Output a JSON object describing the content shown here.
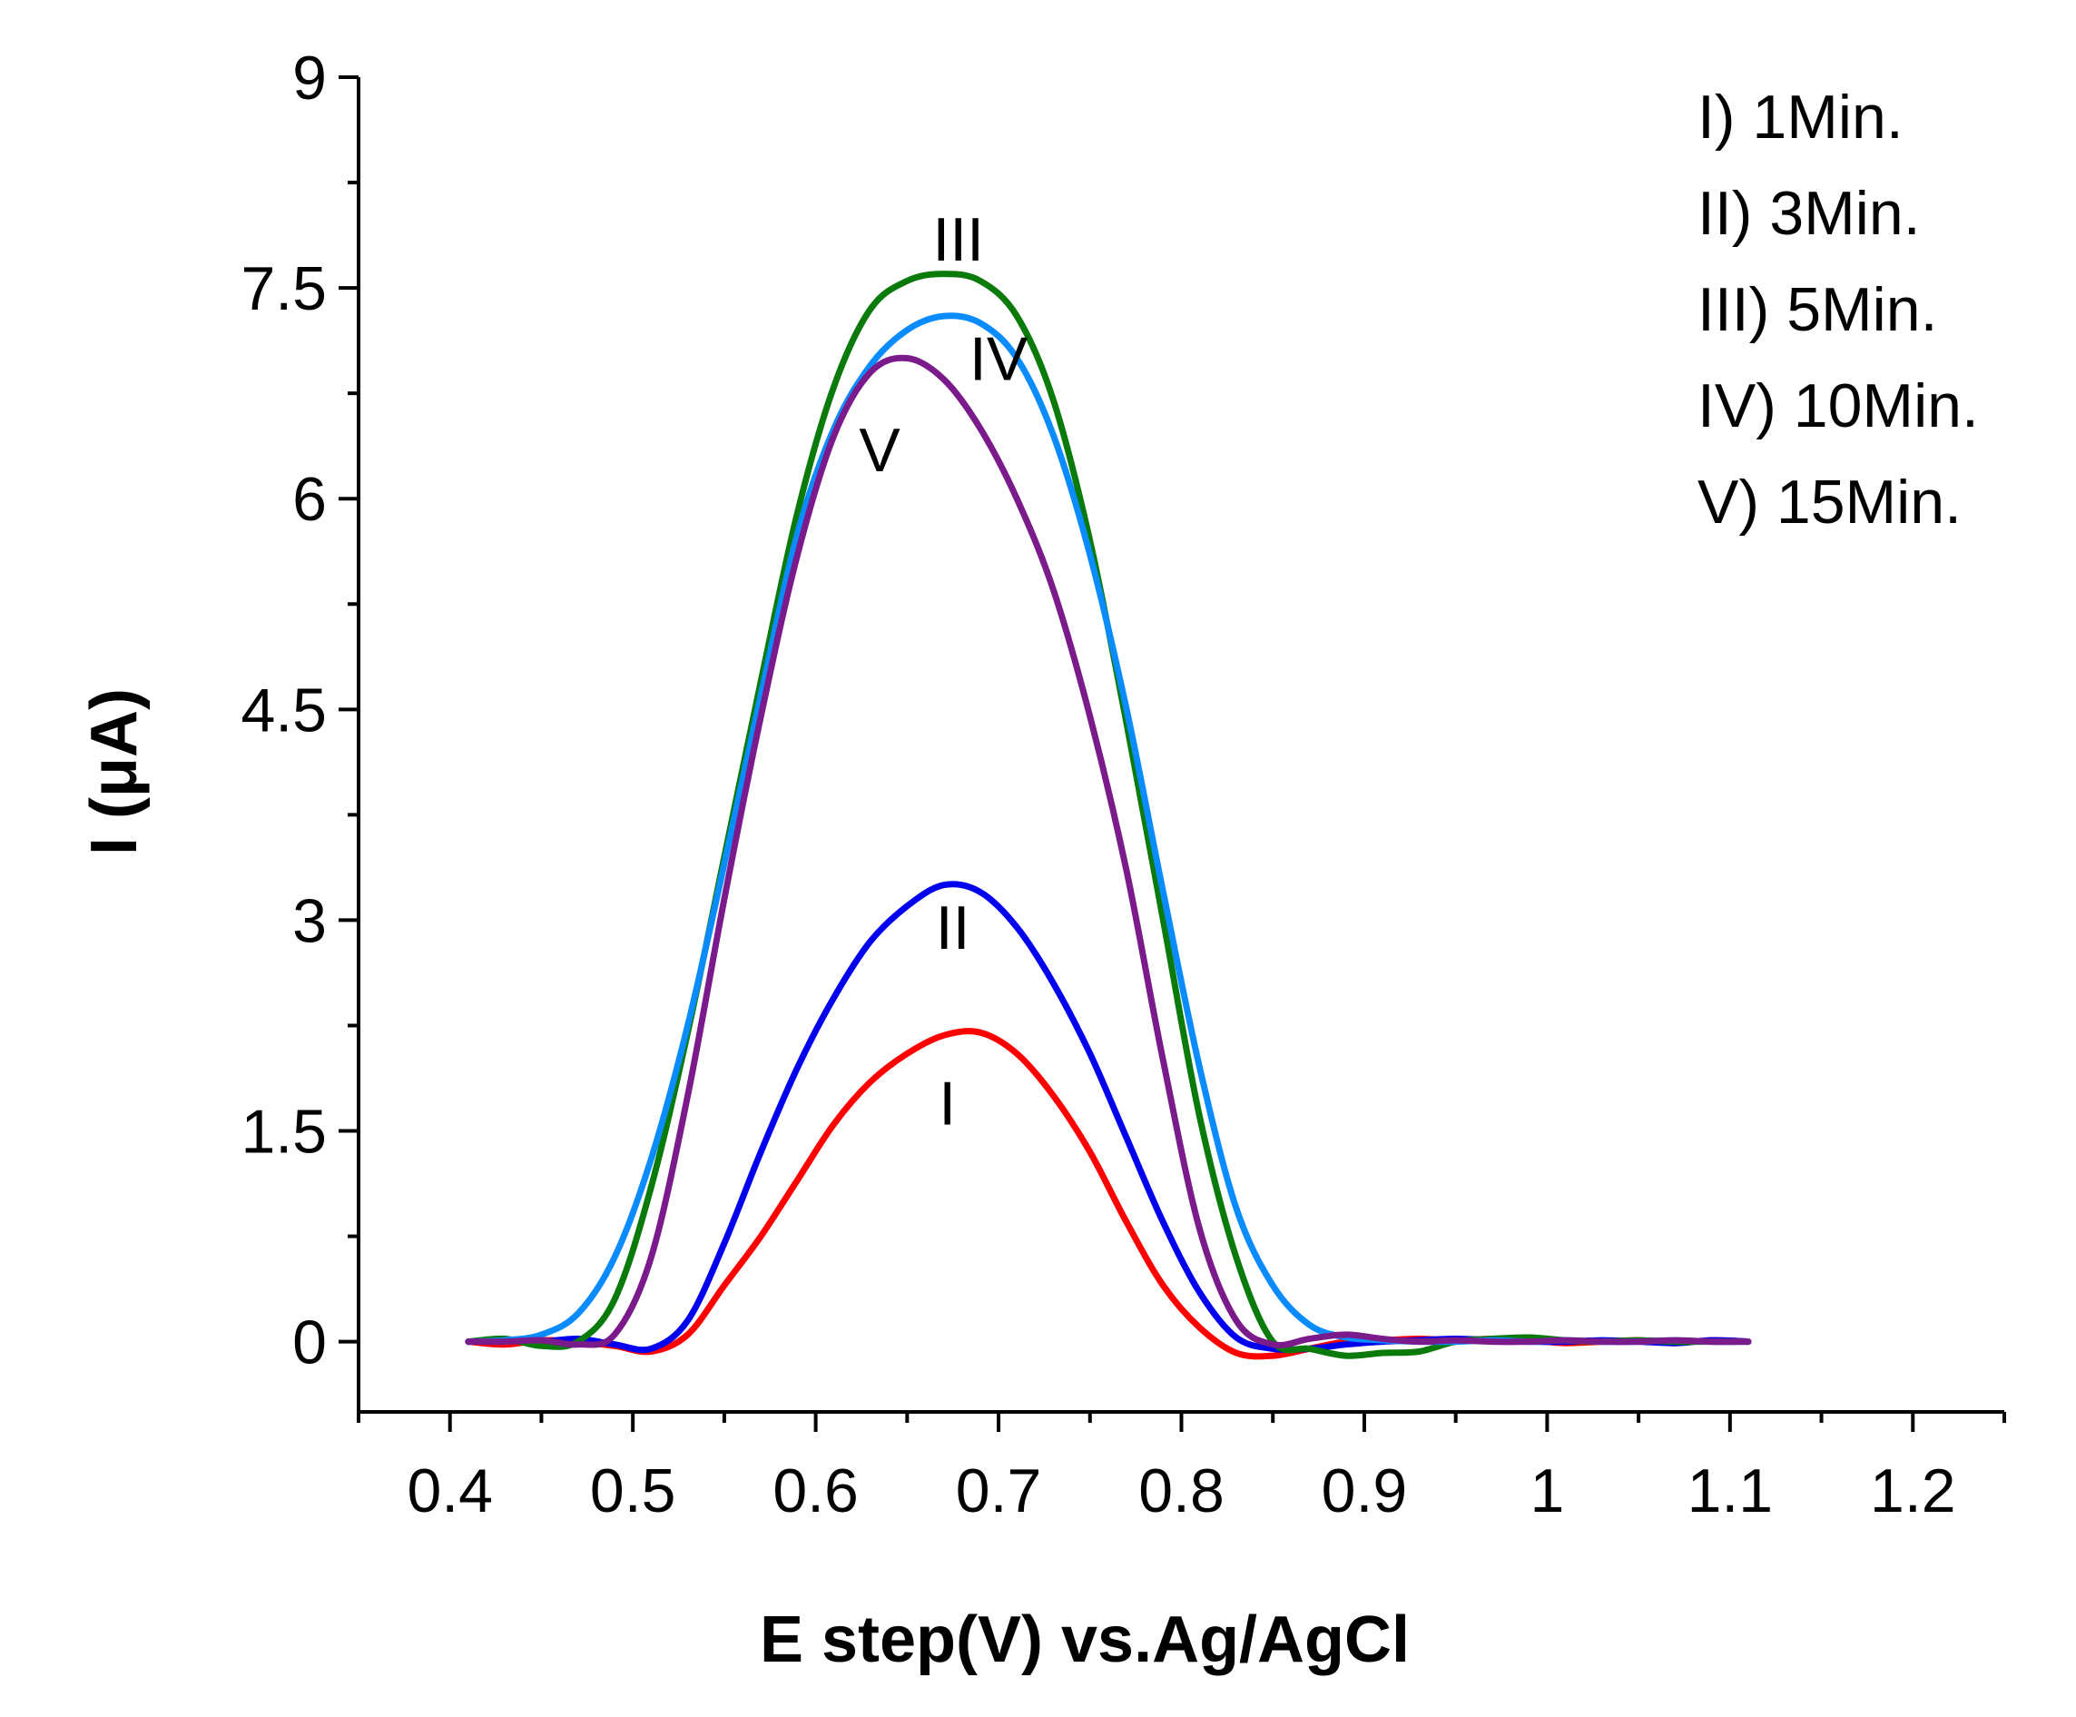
{
  "chart_data": {
    "type": "line",
    "title": "",
    "xlabel": "E step(V) vs.Ag/AgCl",
    "ylabel": "I (μA)",
    "xlim": [
      0.35,
      1.25
    ],
    "ylim": [
      -0.5,
      9
    ],
    "x_ticks": [
      0.4,
      0.5,
      0.6,
      0.7,
      0.8,
      0.9,
      1,
      1.1,
      1.2
    ],
    "x_tick_labels": [
      "0.4",
      "0.5",
      "0.6",
      "0.7",
      "0.8",
      "0.9",
      "1",
      "1.1",
      "1.2"
    ],
    "y_ticks": [
      0,
      1.5,
      3,
      4.5,
      6,
      7.5,
      9
    ],
    "y_tick_labels": [
      "0",
      "1.5",
      "3",
      "4.5",
      "6",
      "7.5",
      "9"
    ],
    "legend": [
      "I) 1Min.",
      "II) 3Min.",
      "III) 5Min.",
      "IV) 10Min.",
      "V) 15Min."
    ],
    "series": [
      {
        "name": "I",
        "label": "I",
        "color": "#ff0000",
        "label_pos": [
          0.672,
          1.7
        ],
        "x": [
          0.41,
          0.43,
          0.45,
          0.47,
          0.49,
          0.51,
          0.53,
          0.55,
          0.57,
          0.59,
          0.61,
          0.63,
          0.65,
          0.67,
          0.69,
          0.71,
          0.73,
          0.75,
          0.77,
          0.79,
          0.81,
          0.83,
          0.85,
          0.87,
          0.89,
          0.91,
          0.93,
          0.95,
          0.97,
          0.99,
          1.01,
          1.03,
          1.05,
          1.07,
          1.09,
          1.11
        ],
        "y": [
          0.0,
          -0.02,
          0.01,
          0.0,
          -0.03,
          -0.07,
          0.05,
          0.4,
          0.75,
          1.15,
          1.55,
          1.85,
          2.05,
          2.18,
          2.2,
          2.05,
          1.75,
          1.35,
          0.85,
          0.4,
          0.1,
          -0.08,
          -0.1,
          -0.05,
          0.0,
          0.01,
          0.02,
          0.01,
          0.02,
          0.01,
          -0.01,
          0.0,
          0.01,
          -0.01,
          0.01,
          0.0
        ]
      },
      {
        "name": "II",
        "label": "II",
        "color": "#0000ee",
        "label_pos": [
          0.675,
          2.95
        ],
        "x": [
          0.41,
          0.43,
          0.45,
          0.47,
          0.49,
          0.51,
          0.53,
          0.55,
          0.57,
          0.59,
          0.61,
          0.63,
          0.65,
          0.67,
          0.69,
          0.71,
          0.73,
          0.75,
          0.77,
          0.79,
          0.81,
          0.83,
          0.85,
          0.87,
          0.89,
          0.91,
          0.93,
          0.95,
          0.97,
          0.99,
          1.01,
          1.03,
          1.05,
          1.07,
          1.09,
          1.11
        ],
        "y": [
          0.0,
          0.01,
          0.0,
          0.02,
          -0.02,
          -0.05,
          0.15,
          0.7,
          1.35,
          1.95,
          2.45,
          2.85,
          3.1,
          3.25,
          3.2,
          2.95,
          2.55,
          2.05,
          1.45,
          0.85,
          0.35,
          0.03,
          -0.05,
          -0.05,
          -0.02,
          0.0,
          0.01,
          0.02,
          0.01,
          0.0,
          0.0,
          0.01,
          0.0,
          -0.01,
          0.01,
          0.0
        ]
      },
      {
        "name": "III",
        "label": "III",
        "color": "#0a7a0a",
        "label_pos": [
          0.678,
          7.85
        ],
        "x": [
          0.41,
          0.43,
          0.45,
          0.47,
          0.49,
          0.51,
          0.53,
          0.55,
          0.57,
          0.59,
          0.61,
          0.63,
          0.65,
          0.67,
          0.69,
          0.71,
          0.73,
          0.75,
          0.77,
          0.79,
          0.81,
          0.83,
          0.85,
          0.87,
          0.89,
          0.91,
          0.93,
          0.95,
          0.97,
          0.99,
          1.01,
          1.03,
          1.05,
          1.07,
          1.09,
          1.11
        ],
        "y": [
          0.0,
          0.02,
          -0.03,
          0.0,
          0.3,
          1.1,
          2.2,
          3.45,
          4.7,
          5.9,
          6.8,
          7.35,
          7.55,
          7.6,
          7.55,
          7.3,
          6.7,
          5.7,
          4.4,
          3.0,
          1.6,
          0.6,
          0.0,
          -0.05,
          -0.1,
          -0.08,
          -0.07,
          0.0,
          0.02,
          0.03,
          0.01,
          0.0,
          0.01,
          0.0,
          0.0,
          0.0
        ]
      },
      {
        "name": "IV",
        "label": "IV",
        "color": "#0a8cff",
        "label_pos": [
          0.7,
          7.0
        ],
        "x": [
          0.41,
          0.43,
          0.45,
          0.47,
          0.49,
          0.51,
          0.53,
          0.55,
          0.57,
          0.59,
          0.61,
          0.63,
          0.65,
          0.67,
          0.69,
          0.71,
          0.73,
          0.75,
          0.77,
          0.79,
          0.81,
          0.83,
          0.85,
          0.87,
          0.89,
          0.91,
          0.93,
          0.95,
          0.97,
          0.99,
          1.01,
          1.03,
          1.05,
          1.07,
          1.09,
          1.11
        ],
        "y": [
          0.0,
          0.01,
          0.05,
          0.2,
          0.6,
          1.3,
          2.25,
          3.4,
          4.6,
          5.75,
          6.5,
          6.95,
          7.2,
          7.3,
          7.25,
          7.0,
          6.45,
          5.6,
          4.5,
          3.2,
          1.95,
          0.95,
          0.4,
          0.12,
          0.03,
          0.01,
          0.0,
          0.0,
          0.01,
          0.0,
          0.01,
          0.0,
          0.0,
          0.01,
          0.0,
          0.0
        ]
      },
      {
        "name": "V",
        "label": "V",
        "color": "#7b1a8a",
        "label_pos": [
          0.635,
          6.35
        ],
        "x": [
          0.41,
          0.43,
          0.45,
          0.47,
          0.49,
          0.51,
          0.53,
          0.55,
          0.57,
          0.59,
          0.61,
          0.63,
          0.65,
          0.67,
          0.69,
          0.71,
          0.73,
          0.75,
          0.77,
          0.79,
          0.81,
          0.83,
          0.85,
          0.87,
          0.89,
          0.91,
          0.93,
          0.95,
          0.97,
          0.99,
          1.01,
          1.03,
          1.05,
          1.07,
          1.09,
          1.11
        ],
        "y": [
          0.0,
          0.0,
          0.01,
          -0.02,
          0.05,
          0.6,
          1.75,
          3.15,
          4.45,
          5.6,
          6.45,
          6.9,
          7.0,
          6.85,
          6.5,
          6.0,
          5.35,
          4.45,
          3.35,
          2.0,
          0.8,
          0.15,
          -0.02,
          0.02,
          0.05,
          0.02,
          0.0,
          0.01,
          0.0,
          0.0,
          0.01,
          0.0,
          0.0,
          0.01,
          0.0,
          0.0
        ]
      }
    ]
  }
}
